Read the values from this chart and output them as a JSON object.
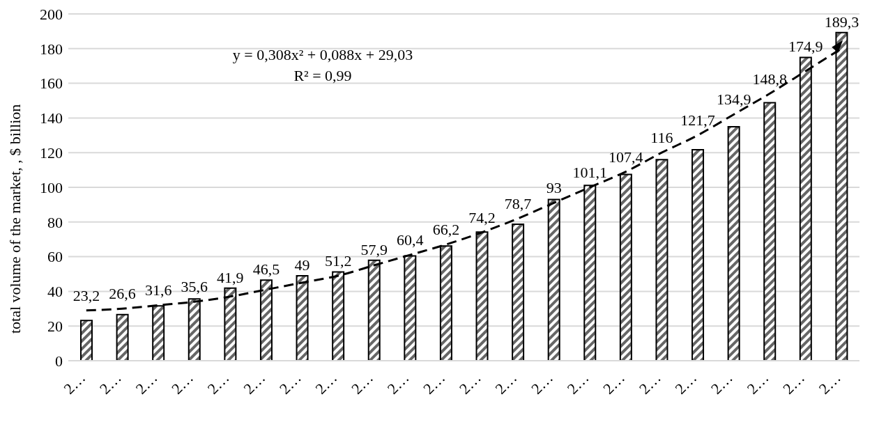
{
  "chart_data": {
    "type": "bar",
    "ylabel": "total volume of the market, , $ billion",
    "categories": [
      "2…",
      "2…",
      "2…",
      "2…",
      "2…",
      "2…",
      "2…",
      "2…",
      "2…",
      "2…",
      "2…",
      "2…",
      "2…",
      "2…",
      "2…",
      "2…",
      "2…",
      "2…",
      "2…",
      "2…",
      "2…",
      "2…"
    ],
    "series": [
      {
        "color": "#000000",
        "values": [
          23.2,
          26.6,
          31.6,
          35.6,
          41.9,
          46.5,
          49,
          51.2,
          57.9,
          60.4,
          66.2,
          74.2,
          78.7,
          93,
          101.1,
          107.4,
          116,
          121.7,
          134.9,
          148.8,
          174.9,
          189.3
        ],
        "value_labels": [
          "23,2",
          "26,6",
          "31,6",
          "35,6",
          "41,9",
          "46,5",
          "49",
          "51,2",
          "57,9",
          "60,4",
          "66,2",
          "74,2",
          "78,7",
          "93",
          "101,1",
          "107,4",
          "116",
          "121,7",
          "134,9",
          "148,8",
          "174,9",
          "189,3"
        ]
      },
      {
        "type": "line",
        "color": "#000000",
        "line_style": "dashed",
        "marker": "none",
        "values": [
          29,
          30,
          32,
          34,
          37,
          41,
          45,
          49,
          55,
          61,
          67,
          74,
          82,
          91,
          100,
          109,
          120,
          130,
          142,
          154,
          167,
          180
        ]
      }
    ],
    "ylim": [
      0,
      200
    ],
    "yticks": [
      0,
      20,
      40,
      60,
      80,
      100,
      120,
      140,
      160,
      180,
      200
    ],
    "grid": "y",
    "legend": false,
    "annotations": [
      "y = 0,308x² + 0,088x + 29,03",
      "R² = 0,99"
    ]
  }
}
